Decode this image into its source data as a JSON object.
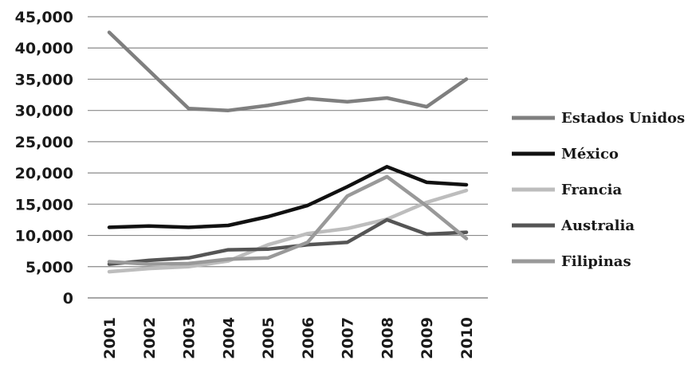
{
  "chart_data": {
    "type": "line",
    "categories": [
      "2001",
      "2002",
      "2003",
      "2004",
      "2005",
      "2006",
      "2007",
      "2008",
      "2009",
      "2010"
    ],
    "ylim": [
      0,
      45000
    ],
    "yticks": [
      0,
      5000,
      10000,
      15000,
      20000,
      25000,
      30000,
      35000,
      40000,
      45000
    ],
    "ytick_labels": [
      "0",
      "5,000",
      "10,000",
      "15,000",
      "20,000",
      "25,000",
      "30,000",
      "35,000",
      "40,000",
      "45,000"
    ],
    "grid": true,
    "legend_position": "right",
    "series": [
      {
        "name": "Estados Unidos",
        "color": "#7f7f7f",
        "values": [
          42500,
          36400,
          30300,
          30000,
          30800,
          31900,
          31400,
          32000,
          30600,
          35000
        ]
      },
      {
        "name": "México",
        "color": "#111111",
        "values": [
          11300,
          11500,
          11300,
          11600,
          13000,
          14800,
          17800,
          21000,
          18500,
          18100
        ]
      },
      {
        "name": "Francia",
        "color": "#bdbdbd",
        "values": [
          4200,
          4700,
          5000,
          5900,
          8500,
          10300,
          11100,
          12600,
          15300,
          17200
        ]
      },
      {
        "name": "Australia",
        "color": "#555555",
        "values": [
          5400,
          6000,
          6400,
          7700,
          7800,
          8500,
          8900,
          12500,
          10200,
          10500
        ]
      },
      {
        "name": "Filipinas",
        "color": "#999999",
        "values": [
          5800,
          5400,
          5500,
          6200,
          6400,
          8900,
          16300,
          19400,
          14700,
          9500
        ]
      }
    ]
  }
}
